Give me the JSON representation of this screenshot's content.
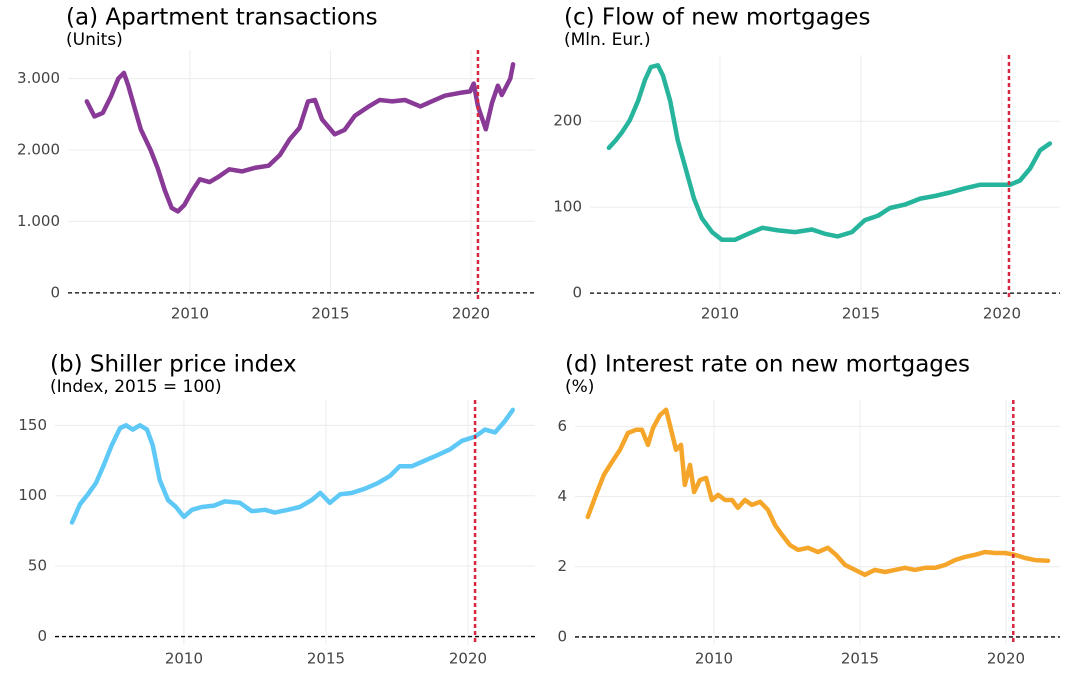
{
  "chart_data": [
    {
      "type": "line",
      "title": "(a) Apartment transactions",
      "subtitle": "(Units)",
      "x": [
        2006.33,
        2006.6,
        2006.9,
        2007.2,
        2007.45,
        2007.65,
        2007.8,
        2008.05,
        2008.25,
        2008.6,
        2008.85,
        2009.1,
        2009.35,
        2009.57,
        2009.8,
        2010.07,
        2010.35,
        2010.7,
        2011.0,
        2011.4,
        2011.85,
        2012.3,
        2012.8,
        2013.2,
        2013.55,
        2013.9,
        2014.2,
        2014.45,
        2014.7,
        2015.15,
        2015.5,
        2015.87,
        2016.33,
        2016.75,
        2017.2,
        2017.65,
        2018.2,
        2018.6,
        2019.07,
        2019.6,
        2019.97,
        2020.1,
        2020.25,
        2020.53,
        2020.75,
        2020.96,
        2021.1,
        2021.4,
        2021.5
      ],
      "series": [
        {
          "color": "#883a96",
          "values": [
            2680,
            2470,
            2520,
            2760,
            3000,
            3080,
            2910,
            2560,
            2290,
            2000,
            1750,
            1440,
            1190,
            1140,
            1230,
            1420,
            1590,
            1550,
            1620,
            1730,
            1700,
            1750,
            1780,
            1930,
            2150,
            2310,
            2680,
            2700,
            2430,
            2220,
            2280,
            2480,
            2600,
            2700,
            2680,
            2700,
            2610,
            2680,
            2760,
            2800,
            2820,
            2930,
            2610,
            2290,
            2660,
            2900,
            2770,
            3000,
            3200
          ]
        }
      ],
      "xlim": [
        2005.66,
        2022.28
      ],
      "xticks": [
        2010,
        2015,
        2020
      ],
      "ylim": [
        -100,
        3400
      ],
      "yticks": [
        0,
        {
          "value": 1000,
          "label": "1.000"
        },
        {
          "value": 2000,
          "label": "2.000"
        },
        {
          "value": 3000,
          "label": "3.000"
        }
      ],
      "grid": true,
      "hline": 0,
      "vline": 2020.25,
      "vline_color": "#d7263d"
    },
    {
      "type": "line",
      "title": "(b) Shiller price index",
      "subtitle": "(Index, 2015 = 100)",
      "x": [
        2006.06,
        2006.34,
        2006.62,
        2006.9,
        2007.18,
        2007.46,
        2007.75,
        2007.96,
        2008.2,
        2008.45,
        2008.7,
        2008.9,
        2009.15,
        2009.44,
        2009.72,
        2010.0,
        2010.28,
        2010.63,
        2011.06,
        2011.44,
        2011.97,
        2012.39,
        2012.85,
        2013.2,
        2013.66,
        2014.08,
        2014.5,
        2014.8,
        2015.14,
        2015.5,
        2015.92,
        2016.37,
        2016.83,
        2017.25,
        2017.6,
        2018.03,
        2018.49,
        2018.94,
        2019.37,
        2019.79,
        2020.25,
        2020.6,
        2020.95,
        2021.3,
        2021.58
      ],
      "series": [
        {
          "color": "#5ec8f6",
          "values": [
            81,
            94,
            101,
            109,
            122,
            136,
            148,
            150,
            147,
            150,
            147,
            136,
            111,
            97,
            92,
            85,
            90,
            92,
            93,
            96,
            95,
            89,
            90,
            88,
            90,
            92,
            97,
            102,
            95,
            101,
            102,
            105,
            109,
            114,
            121,
            121,
            125,
            129,
            133,
            139,
            142,
            147,
            145,
            153,
            161
          ]
        }
      ],
      "xlim": [
        2005.46,
        2022.36
      ],
      "xticks": [
        2010,
        2015,
        2020
      ],
      "ylim": [
        -6,
        168
      ],
      "yticks": [
        0,
        50,
        100,
        150
      ],
      "grid": true,
      "hline": 0,
      "vline": 2020.25,
      "vline_color": "#d7263d"
    },
    {
      "type": "line",
      "title": "(c) Flow of new mortgages",
      "subtitle": "(Mln. Eur.)",
      "x": [
        2006.06,
        2006.31,
        2006.52,
        2006.8,
        2007.1,
        2007.34,
        2007.55,
        2007.8,
        2007.98,
        2008.23,
        2008.5,
        2008.8,
        2009.08,
        2009.36,
        2009.72,
        2010.07,
        2010.53,
        2011.0,
        2011.5,
        2012.06,
        2012.66,
        2013.26,
        2013.72,
        2014.18,
        2014.68,
        2015.14,
        2015.6,
        2016.03,
        2016.56,
        2017.1,
        2017.62,
        2018.16,
        2018.7,
        2019.22,
        2019.75,
        2020.28,
        2020.64,
        2021.0,
        2021.35,
        2021.7
      ],
      "series": [
        {
          "color": "#27b49c",
          "values": [
            169,
            178,
            187,
            201,
            224,
            248,
            263,
            265,
            253,
            224,
            178,
            143,
            110,
            87,
            71,
            62,
            62,
            69,
            76,
            73,
            71,
            74,
            69,
            66,
            71,
            85,
            90,
            99,
            103,
            110,
            113,
            117,
            122,
            126,
            126,
            126,
            131,
            145,
            166,
            174
          ]
        }
      ],
      "xlim": [
        2005.39,
        2022.06
      ],
      "xticks": [
        2010,
        2015,
        2020
      ],
      "ylim": [
        -8,
        277
      ],
      "yticks": [
        0,
        100,
        200
      ],
      "grid": true,
      "hline": 0,
      "vline": 2020.25,
      "vline_color": "#d7263d"
    },
    {
      "type": "line",
      "title": "(d) Interest rate on new mortgages",
      "subtitle": "(%)",
      "x": [
        2005.68,
        2005.96,
        2006.23,
        2006.51,
        2006.78,
        2007.05,
        2007.33,
        2007.53,
        2007.74,
        2007.91,
        2008.15,
        2008.36,
        2008.53,
        2008.7,
        2008.87,
        2009.0,
        2009.18,
        2009.32,
        2009.52,
        2009.73,
        2009.93,
        2010.14,
        2010.38,
        2010.62,
        2010.82,
        2011.06,
        2011.3,
        2011.58,
        2011.85,
        2012.09,
        2012.33,
        2012.6,
        2012.88,
        2013.22,
        2013.56,
        2013.9,
        2014.18,
        2014.49,
        2014.83,
        2015.17,
        2015.51,
        2015.86,
        2016.2,
        2016.54,
        2016.88,
        2017.23,
        2017.57,
        2017.91,
        2018.25,
        2018.6,
        2018.94,
        2019.28,
        2019.62,
        2019.97,
        2020.31,
        2020.65,
        2021.0,
        2021.44
      ],
      "series": [
        {
          "color": "#f5a62a",
          "values": [
            3.42,
            4.05,
            4.62,
            4.99,
            5.33,
            5.81,
            5.9,
            5.9,
            5.47,
            5.95,
            6.32,
            6.47,
            5.9,
            5.33,
            5.47,
            4.33,
            4.9,
            4.13,
            4.47,
            4.53,
            3.9,
            4.05,
            3.9,
            3.9,
            3.68,
            3.9,
            3.76,
            3.85,
            3.62,
            3.19,
            2.91,
            2.62,
            2.48,
            2.54,
            2.42,
            2.54,
            2.34,
            2.05,
            1.91,
            1.77,
            1.91,
            1.85,
            1.91,
            1.97,
            1.91,
            1.97,
            1.97,
            2.05,
            2.19,
            2.28,
            2.34,
            2.42,
            2.39,
            2.39,
            2.34,
            2.25,
            2.19,
            2.17
          ]
        }
      ],
      "xlim": [
        2005.24,
        2021.85
      ],
      "xticks": [
        2010,
        2015,
        2020
      ],
      "ylim": [
        -0.23,
        6.75
      ],
      "yticks": [
        0,
        2,
        4,
        6
      ],
      "grid": true,
      "hline": 0,
      "vline": 2020.25,
      "vline_color": "#d7263d"
    }
  ]
}
